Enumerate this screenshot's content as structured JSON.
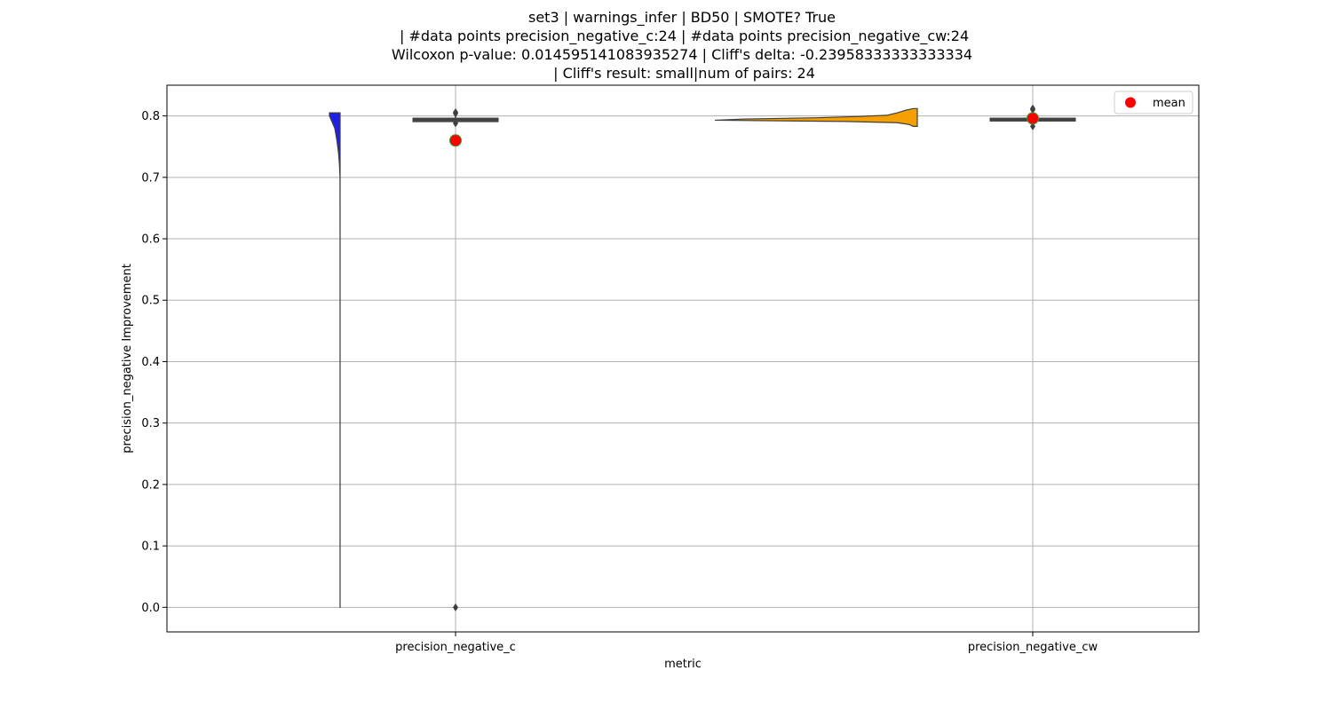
{
  "chart_data": {
    "type": "violin",
    "title_lines": [
      "set3 | warnings_infer | BD50 | SMOTE? True",
      " | #data points precision_negative_c:24 | #data points precision_negative_cw:24",
      "Wilcoxon p-value: 0.014595141083935274 | Cliff's delta: -0.23958333333333334",
      " | Cliff's result: small|num of pairs: 24"
    ],
    "xlabel": "metric",
    "ylabel": "precision_negative Improvement",
    "categories": [
      "precision_negative_c",
      "precision_negative_cw"
    ],
    "ylim": [
      -0.04,
      0.85
    ],
    "yticks": [
      0.0,
      0.1,
      0.2,
      0.3,
      0.4,
      0.5,
      0.6,
      0.7,
      0.8
    ],
    "ytick_labels": [
      "0.0",
      "0.1",
      "0.2",
      "0.3",
      "0.4",
      "0.5",
      "0.6",
      "0.7",
      "0.8"
    ],
    "grid": true,
    "legend": {
      "placement": "top-right",
      "entries": [
        "mean"
      ]
    },
    "series": [
      {
        "category": "precision_negative_c",
        "color": "#1f1fe8",
        "box": {
          "q1": 0.792,
          "median": 0.794,
          "q3": 0.795,
          "whisker_low": 0.786,
          "whisker_high": 0.8
        },
        "outliers": [
          0.0,
          0.788,
          0.804,
          0.806
        ],
        "mean": 0.76,
        "density": [
          [
            0.0,
            0.004
          ],
          [
            0.1,
            0.004
          ],
          [
            0.2,
            0.004
          ],
          [
            0.3,
            0.004
          ],
          [
            0.4,
            0.004
          ],
          [
            0.5,
            0.004
          ],
          [
            0.6,
            0.005
          ],
          [
            0.7,
            0.01
          ],
          [
            0.72,
            0.06
          ],
          [
            0.74,
            0.15
          ],
          [
            0.76,
            0.3
          ],
          [
            0.78,
            0.5
          ],
          [
            0.79,
            0.75
          ],
          [
            0.8,
            1.0
          ],
          [
            0.805,
            1.0
          ]
        ]
      },
      {
        "category": "precision_negative_cw",
        "color": "#f5a000",
        "box": {
          "q1": 0.793,
          "median": 0.794,
          "q3": 0.795,
          "whisker_low": 0.787,
          "whisker_high": 0.806
        },
        "outliers": [
          0.783,
          0.81,
          0.812
        ],
        "mean": 0.796,
        "density": [
          [
            0.783,
            0.02
          ],
          [
            0.786,
            0.04
          ],
          [
            0.789,
            0.1
          ],
          [
            0.791,
            0.35
          ],
          [
            0.793,
            1.0
          ],
          [
            0.795,
            0.85
          ],
          [
            0.797,
            0.5
          ],
          [
            0.799,
            0.3
          ],
          [
            0.801,
            0.15
          ],
          [
            0.805,
            0.1
          ],
          [
            0.809,
            0.06
          ],
          [
            0.812,
            0.02
          ]
        ]
      }
    ]
  }
}
